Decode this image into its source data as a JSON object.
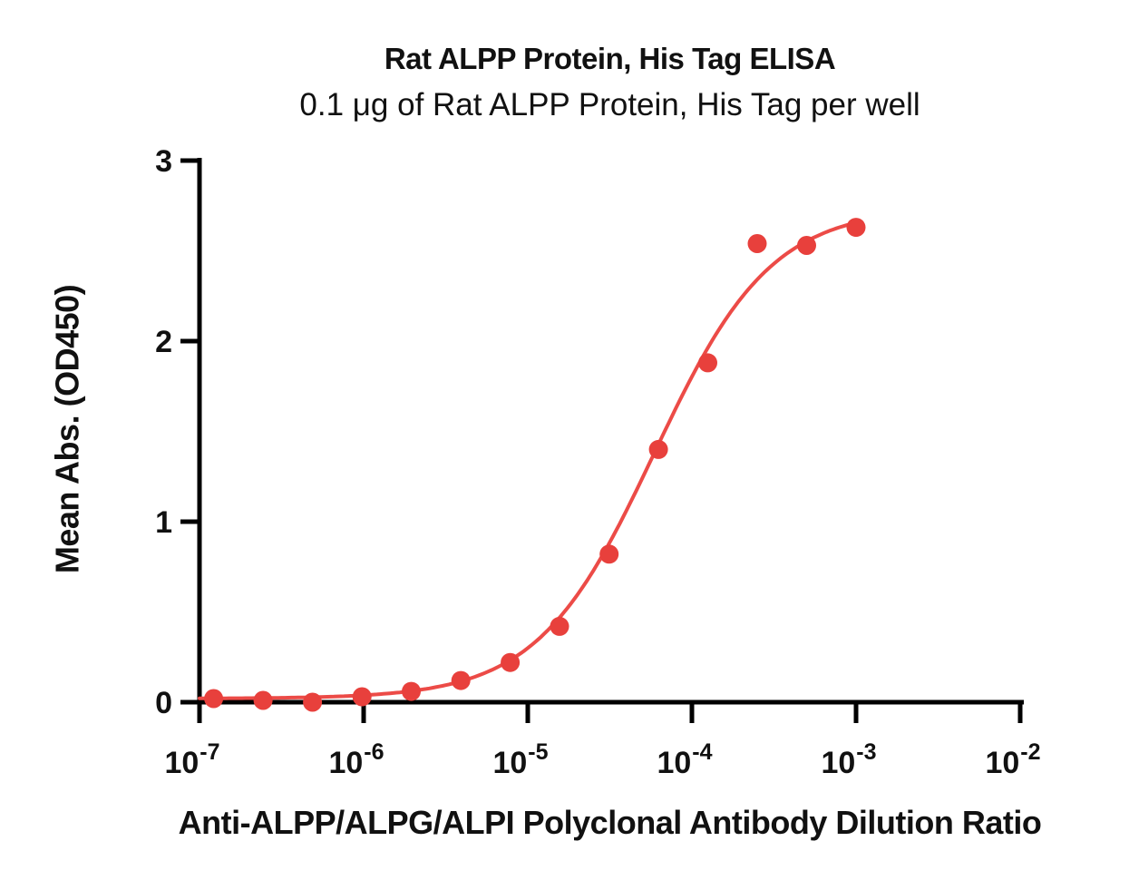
{
  "figure": {
    "background": "#ffffff"
  },
  "chart_data": {
    "type": "scatter",
    "title": "Rat ALPP Protein, His Tag ELISA",
    "subtitle": "0.1 μg of Rat ALPP Protein, His Tag per well",
    "xlabel": "Anti-ALPP/ALPG/ALPI Polyclonal Antibody Dilution Ratio",
    "ylabel": "Mean Abs. (OD450)",
    "x_scale": "log10",
    "xlim_log10": [
      -7,
      -2
    ],
    "x_tick_exponents": [
      -7,
      -6,
      -5,
      -4,
      -3,
      -2
    ],
    "ylim": [
      0,
      3
    ],
    "y_ticks": [
      0,
      1,
      2,
      3
    ],
    "grid": false,
    "legend": "none",
    "colors": {
      "axis": "#000000",
      "text": "#111111",
      "marker": "#e8403c",
      "curve": "#ec4b47"
    },
    "series": [
      {
        "name": "Rat ALPP Protein, His Tag",
        "marker": "filled-circle",
        "x": [
          1.22e-07,
          2.44e-07,
          4.88e-07,
          9.77e-07,
          1.95e-06,
          3.91e-06,
          7.81e-06,
          1.56e-05,
          3.13e-05,
          6.25e-05,
          0.000125,
          0.00025,
          0.0005,
          0.001
        ],
        "y": [
          0.02,
          0.01,
          0.0,
          0.03,
          0.06,
          0.12,
          0.22,
          0.42,
          0.82,
          1.4,
          1.88,
          2.54,
          2.53,
          2.63
        ],
        "fit_curve": {
          "model": "4PL",
          "bottom": 0.02,
          "top": 2.74,
          "ec50": 5.9e-05,
          "hill": 1.22
        }
      }
    ]
  }
}
